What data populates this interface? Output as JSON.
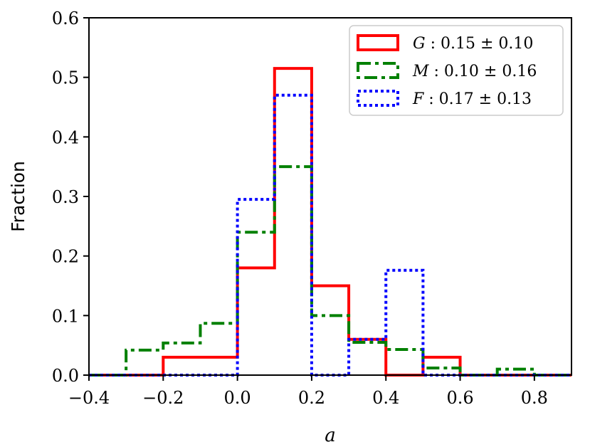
{
  "chart_data": {
    "type": "histogram",
    "title": "",
    "xlabel": "a",
    "ylabel": "Fraction",
    "xlim": [
      -0.4,
      0.9
    ],
    "ylim": [
      0,
      0.6
    ],
    "xticks": [
      -0.4,
      -0.2,
      0.0,
      0.2,
      0.4,
      0.6,
      0.8
    ],
    "xtick_labels": [
      "−0.4",
      "−0.2",
      "0.0",
      "0.2",
      "0.4",
      "0.6",
      "0.8"
    ],
    "yticks": [
      0.0,
      0.1,
      0.2,
      0.3,
      0.4,
      0.5,
      0.6
    ],
    "ytick_labels": [
      "0.0",
      "0.1",
      "0.2",
      "0.3",
      "0.4",
      "0.5",
      "0.6"
    ],
    "grid": false,
    "legend_position": "top-right",
    "series": [
      {
        "name": "G : 0.15 ± 0.10",
        "color": "#ff0000",
        "style": "solid",
        "bin_edges": [
          -0.4,
          -0.3,
          -0.2,
          -0.1,
          0.0,
          0.1,
          0.2,
          0.3,
          0.4,
          0.5,
          0.6,
          0.7,
          0.8,
          0.9
        ],
        "values": [
          0,
          0,
          0.03,
          0.03,
          0.18,
          0.515,
          0.15,
          0.06,
          0,
          0.03,
          0,
          0,
          0
        ]
      },
      {
        "name": "M : 0.10 ± 0.16",
        "color": "#008000",
        "style": "dashdot",
        "bin_edges": [
          -0.4,
          -0.3,
          -0.2,
          -0.1,
          0.0,
          0.1,
          0.2,
          0.3,
          0.4,
          0.5,
          0.6,
          0.7,
          0.8,
          0.9
        ],
        "values": [
          0,
          0.042,
          0.054,
          0.087,
          0.24,
          0.35,
          0.1,
          0.055,
          0.043,
          0.012,
          0,
          0.01,
          0
        ]
      },
      {
        "name": "F : 0.17 ± 0.13",
        "color": "#0000ff",
        "style": "dotted",
        "bin_edges": [
          -0.4,
          -0.3,
          -0.2,
          -0.1,
          0.0,
          0.1,
          0.2,
          0.3,
          0.4,
          0.5,
          0.6,
          0.7,
          0.8,
          0.9
        ],
        "values": [
          0,
          0,
          0,
          0,
          0.295,
          0.47,
          0,
          0.06,
          0.176,
          0,
          0,
          0,
          0
        ]
      }
    ]
  }
}
